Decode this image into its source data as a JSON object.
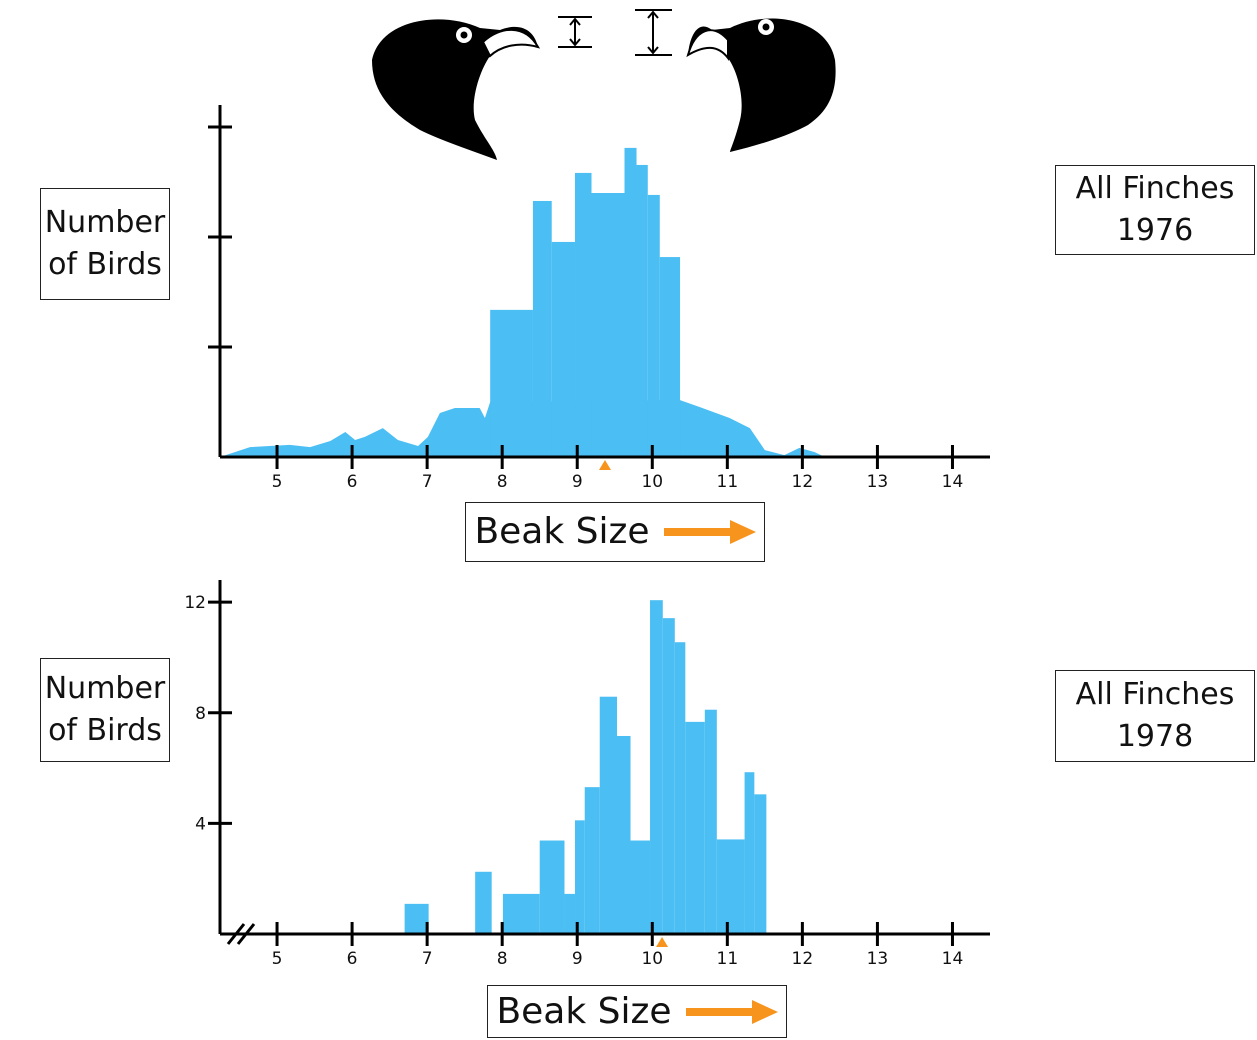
{
  "chart_data": [
    {
      "type": "histogram",
      "title": "All Finches 1976",
      "ylabel": "Number of Birds",
      "xlabel": "Beak Size",
      "bins": [
        7.84,
        8.41,
        8.66,
        8.97,
        9.19,
        9.63,
        9.79,
        9.94,
        10.1,
        10.37
      ],
      "counts": [
        5.35,
        9.31,
        7.82,
        10.33,
        9.6,
        11.24,
        10.62,
        9.53,
        7.27
      ],
      "curve": {
        "x": [
          4.24,
          4.64,
          5.17,
          5.44,
          5.71,
          5.91,
          6.04,
          6.17,
          6.41,
          6.61,
          6.88,
          7.01,
          7.17,
          7.37,
          7.7,
          7.77,
          7.84,
          10.37,
          10.63,
          11.03,
          11.3,
          11.5,
          11.76,
          11.96,
          12.16,
          12.3
        ],
        "values": [
          0,
          0.36,
          0.44,
          0.36,
          0.58,
          0.91,
          0.62,
          0.73,
          1.05,
          0.62,
          0.4,
          0.73,
          1.6,
          1.78,
          1.78,
          1.42,
          2.0,
          2.07,
          1.82,
          1.42,
          1.05,
          0.25,
          0.07,
          0.33,
          0.18,
          0
        ]
      },
      "mean": 9.37,
      "color": "#4bbef3",
      "mean_color": "#f7941d",
      "xlim": [
        4.24,
        14.5
      ],
      "xticks": [
        5,
        6,
        7,
        8,
        9,
        10,
        11,
        12,
        13,
        14
      ],
      "ylim": [
        0,
        12.8
      ],
      "yticks": [
        4,
        8,
        12
      ],
      "ytick_labels": false,
      "axis_break": false
    },
    {
      "type": "histogram",
      "title": "All Finches 1978",
      "ylabel": "Number of Birds",
      "xlabel": "Beak Size",
      "bins": [
        6.7,
        7.02,
        7.64,
        7.86,
        8.01,
        8.5,
        8.83,
        8.97,
        9.1,
        9.3,
        9.53,
        9.71,
        9.97,
        10.14,
        10.3,
        10.44,
        10.7,
        10.86,
        11.23,
        11.36,
        11.52
      ],
      "counts": [
        1.09,
        0,
        2.25,
        0,
        1.45,
        3.38,
        1.45,
        4.11,
        5.31,
        8.58,
        7.16,
        3.38,
        12.07,
        11.42,
        10.55,
        7.67,
        8.11,
        3.42,
        5.85,
        5.05
      ],
      "mean": 10.13,
      "color": "#4bbef3",
      "mean_color": "#f7941d",
      "xlim": [
        4.24,
        14.5
      ],
      "xticks": [
        5,
        6,
        7,
        8,
        9,
        10,
        11,
        12,
        13,
        14
      ],
      "ylim": [
        0,
        12.8
      ],
      "yticks": [
        4,
        8,
        12
      ],
      "ytick_labels": true,
      "axis_break": true
    }
  ]
}
